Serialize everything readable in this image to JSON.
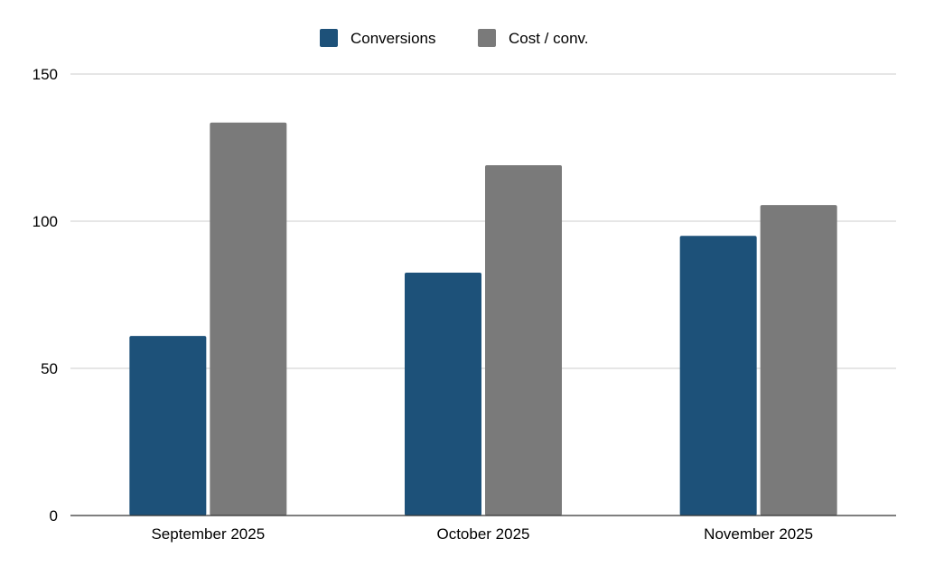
{
  "chart_data": {
    "type": "bar",
    "categories": [
      "September 2025",
      "October 2025",
      "November 2025"
    ],
    "series": [
      {
        "name": "Conversions",
        "color": "#1d5179",
        "values": [
          61,
          82.5,
          95
        ]
      },
      {
        "name": "Cost / conv.",
        "color": "#7a7a7a",
        "values": [
          133.5,
          119,
          105.5
        ]
      }
    ],
    "title": "",
    "xlabel": "",
    "ylabel": "",
    "ylim": [
      0,
      150
    ],
    "yticks": [
      0,
      50,
      100,
      150
    ],
    "grid": true,
    "legend_position": "top-center"
  }
}
